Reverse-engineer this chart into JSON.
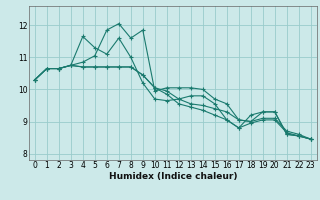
{
  "xlabel": "Humidex (Indice chaleur)",
  "xlim": [
    -0.5,
    23.5
  ],
  "ylim": [
    7.8,
    12.6
  ],
  "yticks": [
    8,
    9,
    10,
    11,
    12
  ],
  "xticks": [
    0,
    1,
    2,
    3,
    4,
    5,
    6,
    7,
    8,
    9,
    10,
    11,
    12,
    13,
    14,
    15,
    16,
    17,
    18,
    19,
    20,
    21,
    22,
    23
  ],
  "bg_color": "#cce9e9",
  "grid_color": "#99cccc",
  "line_color": "#1a7a6e",
  "series": [
    [
      10.3,
      10.65,
      10.65,
      10.75,
      10.85,
      11.05,
      11.85,
      12.05,
      11.6,
      11.85,
      9.95,
      10.05,
      10.05,
      10.05,
      10.0,
      9.7,
      9.55,
      9.05,
      9.0,
      9.3,
      9.3,
      8.6,
      8.55,
      8.45
    ],
    [
      10.3,
      10.65,
      10.65,
      10.75,
      11.65,
      11.3,
      11.1,
      11.6,
      11.0,
      10.2,
      9.7,
      9.65,
      9.7,
      9.8,
      9.8,
      9.55,
      9.05,
      8.8,
      9.2,
      9.3,
      9.3,
      8.6,
      8.55,
      8.45
    ],
    [
      10.3,
      10.65,
      10.65,
      10.75,
      10.7,
      10.7,
      10.7,
      10.7,
      10.7,
      10.45,
      10.05,
      9.95,
      9.7,
      9.55,
      9.5,
      9.4,
      9.3,
      9.05,
      9.0,
      9.1,
      9.1,
      8.7,
      8.6,
      8.45
    ],
    [
      10.3,
      10.65,
      10.65,
      10.75,
      10.7,
      10.7,
      10.7,
      10.7,
      10.7,
      10.45,
      10.05,
      9.85,
      9.55,
      9.45,
      9.35,
      9.2,
      9.05,
      8.8,
      8.95,
      9.05,
      9.05,
      8.65,
      8.55,
      8.45
    ]
  ]
}
